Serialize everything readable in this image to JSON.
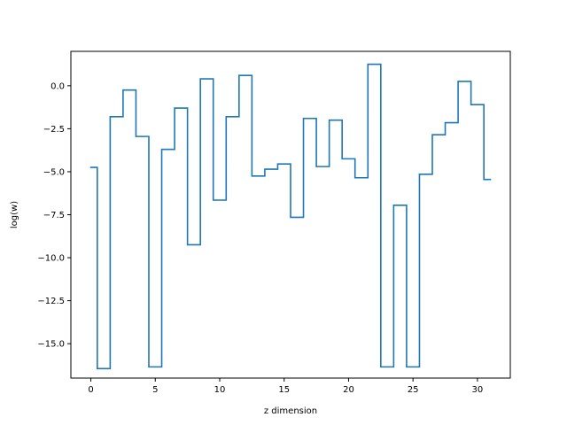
{
  "chart_data": {
    "type": "line",
    "drawstyle": "steps-mid",
    "title": "",
    "xlabel": "z dimension",
    "ylabel": "log(w)",
    "xlim": [
      -1.55,
      32.55
    ],
    "ylim": [
      -17.0,
      2.0
    ],
    "grid": false,
    "x_ticks": [
      0,
      5,
      10,
      15,
      20,
      25,
      30
    ],
    "x_tick_labels": [
      "0",
      "5",
      "10",
      "15",
      "20",
      "25",
      "30"
    ],
    "y_ticks": [
      0.0,
      -2.5,
      -5.0,
      -7.5,
      -10.0,
      -12.5,
      -15.0
    ],
    "y_tick_labels": [
      "0.0",
      "−2.5",
      "−5.0",
      "−7.5",
      "−10.0",
      "−12.5",
      "−15.0"
    ],
    "series": [
      {
        "color": "#1f77b4",
        "x": [
          0,
          1,
          2,
          3,
          4,
          5,
          6,
          7,
          8,
          9,
          10,
          11,
          12,
          13,
          14,
          15,
          16,
          17,
          18,
          19,
          20,
          21,
          22,
          23,
          24,
          25,
          26,
          27,
          28,
          29,
          30,
          31
        ],
        "values": [
          -4.75,
          -16.45,
          -1.8,
          -0.25,
          -2.95,
          -16.35,
          -3.7,
          -1.3,
          -9.25,
          0.4,
          -6.65,
          -1.8,
          0.6,
          -5.25,
          -4.85,
          -4.55,
          -7.65,
          -1.9,
          -4.7,
          -2.0,
          -4.25,
          -5.35,
          1.25,
          -16.35,
          -6.95,
          -16.35,
          -5.15,
          -2.85,
          -2.15,
          0.25,
          -1.1,
          -5.45
        ]
      }
    ]
  }
}
